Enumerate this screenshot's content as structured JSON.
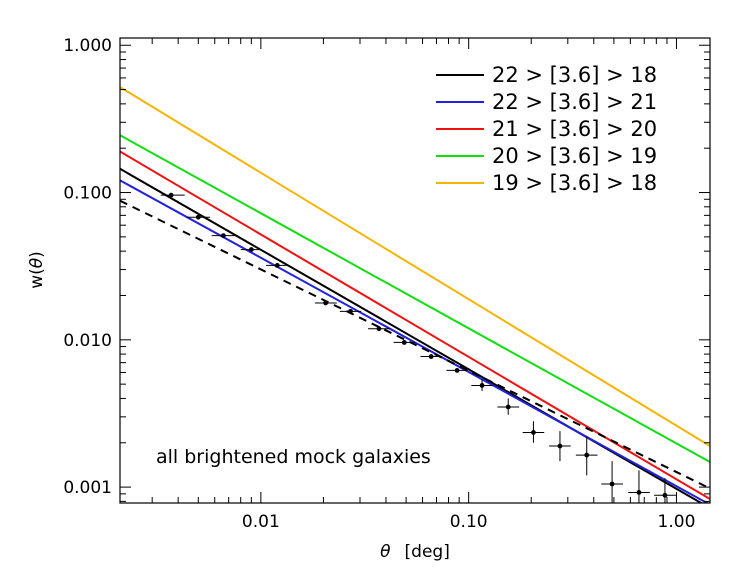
{
  "chart_data": {
    "type": "line",
    "xlabel_symbol": "θ",
    "xlabel_unit": "[deg]",
    "ylabel_prefix": "w(",
    "ylabel_symbol": "θ",
    "ylabel_suffix": ")",
    "xscale": "log",
    "yscale": "log",
    "xlim": [
      0.0021,
      1.45
    ],
    "ylim": [
      0.00078,
      1.12
    ],
    "xticks": [
      {
        "value": 0.01,
        "label": "0.01"
      },
      {
        "value": 0.1,
        "label": "0.10"
      },
      {
        "value": 1.0,
        "label": "1.00"
      }
    ],
    "yticks": [
      {
        "value": 0.001,
        "label": "0.001"
      },
      {
        "value": 0.01,
        "label": "0.010"
      },
      {
        "value": 0.1,
        "label": "0.100"
      },
      {
        "value": 1.0,
        "label": "1.000"
      }
    ],
    "grid": false,
    "legend_position": "top-right",
    "annotation": "all brightened mock galaxies",
    "series": [
      {
        "name": "22 > [3.6] > 18",
        "color": "#000000",
        "style": "solid",
        "x": [
          0.0021,
          1.45
        ],
        "y": [
          0.145,
          0.00072
        ]
      },
      {
        "name": "22 > [3.6] > 21",
        "color": "#2222dd",
        "style": "solid",
        "x": [
          0.0021,
          1.45
        ],
        "y": [
          0.121,
          0.00076
        ]
      },
      {
        "name": "21 > [3.6] > 20",
        "color": "#ee1111",
        "style": "solid",
        "x": [
          0.0021,
          1.45
        ],
        "y": [
          0.19,
          0.00083
        ]
      },
      {
        "name": "20 > [3.6] > 19",
        "color": "#11dd11",
        "style": "solid",
        "x": [
          0.0021,
          1.45
        ],
        "y": [
          0.245,
          0.00148
        ]
      },
      {
        "name": "19 > [3.6] > 18",
        "color": "#f5b400",
        "style": "solid",
        "x": [
          0.0021,
          1.45
        ],
        "y": [
          0.52,
          0.0019
        ]
      },
      {
        "name": "",
        "color": "#000000",
        "style": "dashed",
        "x": [
          0.0021,
          1.45
        ],
        "y": [
          0.088,
          0.00098
        ]
      }
    ],
    "points": [
      {
        "x": 0.0037,
        "y": 0.096,
        "xerr": [
          0.0033,
          0.0043
        ]
      },
      {
        "x": 0.005,
        "y": 0.068,
        "xerr": [
          0.0044,
          0.0057
        ]
      },
      {
        "x": 0.0066,
        "y": 0.051,
        "xerr": [
          0.0058,
          0.0075
        ]
      },
      {
        "x": 0.009,
        "y": 0.041,
        "xerr": [
          0.008,
          0.0101
        ]
      },
      {
        "x": 0.012,
        "y": 0.032,
        "xerr": [
          0.0106,
          0.0136
        ]
      },
      {
        "x": 0.0205,
        "y": 0.0178,
        "xerr": [
          0.0182,
          0.0232
        ]
      },
      {
        "x": 0.027,
        "y": 0.0156,
        "xerr": [
          0.024,
          0.0304
        ]
      },
      {
        "x": 0.037,
        "y": 0.0119,
        "xerr": [
          0.0328,
          0.0418
        ]
      },
      {
        "x": 0.049,
        "y": 0.0096,
        "xerr": [
          0.0435,
          0.0553
        ]
      },
      {
        "x": 0.066,
        "y": 0.0077,
        "xerr": [
          0.0586,
          0.0744
        ]
      },
      {
        "x": 0.088,
        "y": 0.0062,
        "xerr": [
          0.0781,
          0.0993
        ]
      },
      {
        "x": 0.116,
        "y": 0.0049,
        "xerr": [
          0.103,
          0.131
        ],
        "yerr": [
          0.0045,
          0.0054
        ]
      },
      {
        "x": 0.155,
        "y": 0.0035,
        "xerr": [
          0.1375,
          0.175
        ],
        "yerr": [
          0.0031,
          0.004
        ]
      },
      {
        "x": 0.205,
        "y": 0.00235,
        "xerr": [
          0.182,
          0.231
        ],
        "yerr": [
          0.002,
          0.0028
        ]
      },
      {
        "x": 0.275,
        "y": 0.0019,
        "xerr": [
          0.244,
          0.31
        ],
        "yerr": [
          0.0015,
          0.0024
        ]
      },
      {
        "x": 0.37,
        "y": 0.00165,
        "xerr": [
          0.328,
          0.417
        ],
        "yerr": [
          0.0012,
          0.0022
        ]
      },
      {
        "x": 0.49,
        "y": 0.00105,
        "xerr": [
          0.435,
          0.553
        ],
        "yerr": [
          0.00078,
          0.0015
        ]
      },
      {
        "x": 0.66,
        "y": 0.00092,
        "xerr": [
          0.586,
          0.744
        ],
        "yerr": [
          0.00078,
          0.0013
        ]
      },
      {
        "x": 0.88,
        "y": 0.00088,
        "xerr": [
          0.781,
          0.993
        ],
        "yerr": [
          0.00078,
          0.00115
        ]
      }
    ]
  }
}
